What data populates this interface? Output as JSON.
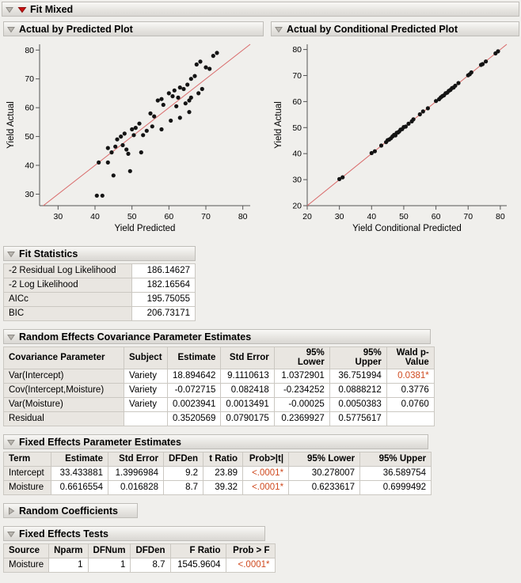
{
  "root": {
    "title": "Fit Mixed"
  },
  "fit_statistics": {
    "title": "Fit Statistics",
    "rows": [
      {
        "label": "-2 Residual Log Likelihood",
        "value": "186.14627"
      },
      {
        "label": "-2 Log Likelihood",
        "value": "182.16564"
      },
      {
        "label": "AICc",
        "value": "195.75055"
      },
      {
        "label": "BIC",
        "value": "206.73171"
      }
    ]
  },
  "random_effects": {
    "title": "Random Effects Covariance Parameter Estimates",
    "columns": [
      "Covariance Parameter",
      "Subject",
      "Estimate",
      "Std Error",
      "95% Lower",
      "95% Upper",
      "Wald p-Value"
    ],
    "rows": [
      {
        "cells": [
          "Var(Intercept)",
          "Variety",
          "18.894642",
          "9.1110613",
          "1.0372901",
          "36.751994",
          "0.0381*"
        ],
        "sig_cols": [
          6
        ]
      },
      {
        "cells": [
          "Cov(Intercept,Moisture)",
          "Variety",
          "-0.072715",
          "0.082418",
          "-0.234252",
          "0.0888212",
          "0.3776"
        ],
        "sig_cols": []
      },
      {
        "cells": [
          "Var(Moisture)",
          "Variety",
          "0.0023941",
          "0.0013491",
          "-0.00025",
          "0.0050383",
          "0.0760"
        ],
        "sig_cols": []
      },
      {
        "cells": [
          "Residual",
          "",
          "0.3520569",
          "0.0790175",
          "0.2369927",
          "0.5775617",
          ""
        ],
        "sig_cols": []
      }
    ]
  },
  "fixed_effects": {
    "title": "Fixed Effects Parameter Estimates",
    "columns": [
      "Term",
      "Estimate",
      "Std Error",
      "DFDen",
      "t Ratio",
      "Prob>|t|",
      "95% Lower",
      "95% Upper"
    ],
    "rows": [
      {
        "cells": [
          "Intercept",
          "33.433881",
          "1.3996984",
          "9.2",
          "23.89",
          "<.0001*",
          "30.278007",
          "36.589754"
        ],
        "sig_cols": [
          5
        ]
      },
      {
        "cells": [
          "Moisture",
          "0.6616554",
          "0.016828",
          "8.7",
          "39.32",
          "<.0001*",
          "0.6233617",
          "0.6999492"
        ],
        "sig_cols": [
          5
        ]
      }
    ]
  },
  "random_coefficients": {
    "title": "Random Coefficients"
  },
  "fixed_effects_tests": {
    "title": "Fixed Effects Tests",
    "columns": [
      "Source",
      "Nparm",
      "DFNum",
      "DFDen",
      "F Ratio",
      "Prob > F"
    ],
    "rows": [
      {
        "cells": [
          "Moisture",
          "1",
          "1",
          "8.7",
          "1545.9604",
          "<.0001*"
        ],
        "sig_cols": [
          5
        ]
      }
    ]
  },
  "colors": {
    "significant": "#cf4a1f",
    "identity_line": "#d96a6a",
    "point": "#141414"
  },
  "chart_data": [
    {
      "type": "scatter",
      "title": "Actual by Predicted Plot",
      "xlabel": "Yield Predicted",
      "ylabel": "Yield Actual",
      "xlim": [
        25,
        82
      ],
      "ylim": [
        26,
        82
      ],
      "xticks": [
        30,
        40,
        50,
        60,
        70,
        80
      ],
      "yticks": [
        30,
        40,
        50,
        60,
        70,
        80
      ],
      "identity_line": true,
      "points": [
        [
          40.5,
          29.5
        ],
        [
          42,
          29.5
        ],
        [
          41,
          41
        ],
        [
          43.5,
          41
        ],
        [
          45,
          36.5
        ],
        [
          49.5,
          38
        ],
        [
          43.5,
          46
        ],
        [
          44.5,
          44.5
        ],
        [
          45.5,
          46.5
        ],
        [
          46,
          49
        ],
        [
          47,
          50
        ],
        [
          47.5,
          47
        ],
        [
          48,
          51
        ],
        [
          48.5,
          45.5
        ],
        [
          49,
          44
        ],
        [
          52.5,
          44.5
        ],
        [
          50,
          52.5
        ],
        [
          50.5,
          50.5
        ],
        [
          51,
          53
        ],
        [
          52,
          54.5
        ],
        [
          53,
          50.5
        ],
        [
          54,
          52
        ],
        [
          55,
          58
        ],
        [
          55.5,
          53.5
        ],
        [
          56,
          57
        ],
        [
          58,
          52.5
        ],
        [
          57,
          62.5
        ],
        [
          58,
          63
        ],
        [
          58.5,
          61
        ],
        [
          60,
          65
        ],
        [
          60.5,
          55.5
        ],
        [
          61,
          64
        ],
        [
          61.5,
          66
        ],
        [
          62,
          60.5
        ],
        [
          62.5,
          63.5
        ],
        [
          63,
          56.5
        ],
        [
          63,
          67
        ],
        [
          64,
          66.5
        ],
        [
          64.5,
          61.5
        ],
        [
          65,
          68
        ],
        [
          65.5,
          58.5
        ],
        [
          65.5,
          62.5
        ],
        [
          66,
          63.5
        ],
        [
          66,
          70
        ],
        [
          67,
          71
        ],
        [
          67.5,
          75
        ],
        [
          68.5,
          76
        ],
        [
          68,
          65
        ],
        [
          69,
          66.5
        ],
        [
          70,
          74
        ],
        [
          71,
          73.5
        ],
        [
          72,
          78
        ],
        [
          73,
          79
        ]
      ]
    },
    {
      "type": "scatter",
      "title": "Actual by Conditional Predicted Plot",
      "xlabel": "Yield Conditional Predicted",
      "ylabel": "Yield Actual",
      "xlim": [
        20,
        82
      ],
      "ylim": [
        20,
        82
      ],
      "xticks": [
        20,
        30,
        40,
        50,
        60,
        70,
        80
      ],
      "yticks": [
        20,
        30,
        40,
        50,
        60,
        70,
        80
      ],
      "identity_line": true,
      "points": [
        [
          30,
          30.2
        ],
        [
          31,
          30.9
        ],
        [
          40,
          40.2
        ],
        [
          41,
          40.9
        ],
        [
          43,
          43.1
        ],
        [
          44.5,
          44.4
        ],
        [
          45,
          45.2
        ],
        [
          45.5,
          45.4
        ],
        [
          46,
          45.9
        ],
        [
          46.5,
          46.6
        ],
        [
          47,
          47.2
        ],
        [
          47.4,
          47
        ],
        [
          47.8,
          48
        ],
        [
          48.2,
          48.1
        ],
        [
          48.6,
          48.5
        ],
        [
          49,
          49.2
        ],
        [
          49.5,
          49.4
        ],
        [
          50,
          50.2
        ],
        [
          50.6,
          50.4
        ],
        [
          51.5,
          51.5
        ],
        [
          52.5,
          52.4
        ],
        [
          53,
          53.2
        ],
        [
          55,
          55.1
        ],
        [
          56,
          56.2
        ],
        [
          57.5,
          57.4
        ],
        [
          60,
          60.2
        ],
        [
          61,
          60.9
        ],
        [
          61.5,
          61.6
        ],
        [
          62,
          62.1
        ],
        [
          62.5,
          62.4
        ],
        [
          63,
          63.2
        ],
        [
          63.5,
          63.4
        ],
        [
          64,
          64.1
        ],
        [
          64.5,
          64.5
        ],
        [
          65,
          65.2
        ],
        [
          65.5,
          65.4
        ],
        [
          66,
          66.1
        ],
        [
          67,
          67.1
        ],
        [
          70,
          70.1
        ],
        [
          70.5,
          70.5
        ],
        [
          71,
          71.2
        ],
        [
          74,
          74.1
        ],
        [
          74.5,
          74.4
        ],
        [
          75.5,
          75.4
        ],
        [
          78.5,
          78.5
        ],
        [
          79.3,
          79.3
        ]
      ]
    }
  ]
}
